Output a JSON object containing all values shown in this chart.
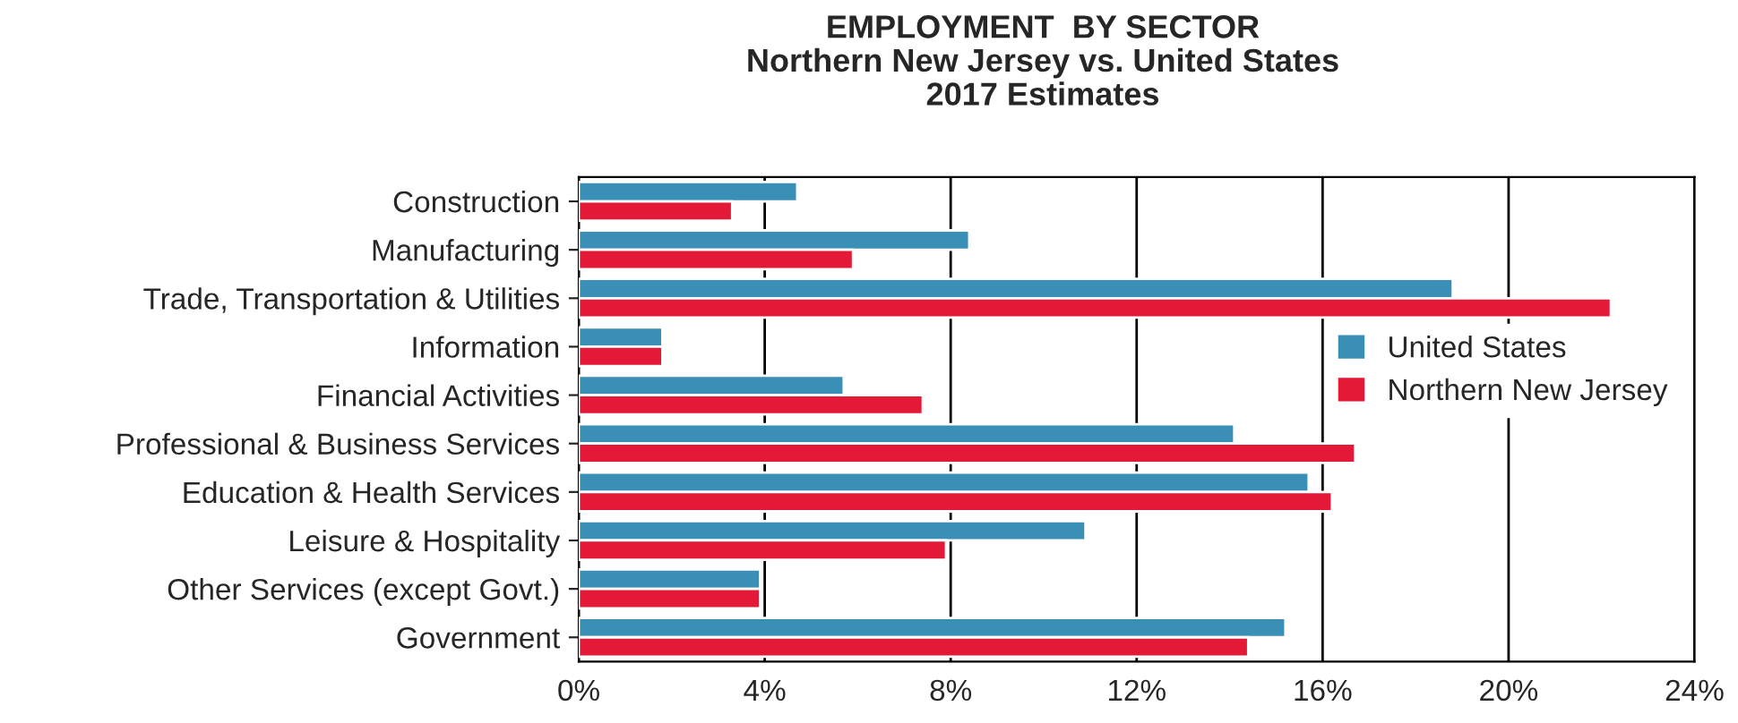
{
  "chart_data": {
    "type": "bar",
    "orientation": "horizontal",
    "title": "EMPLOYMENT  BY SECTOR\nNorthern New Jersey vs. United States\n2017 Estimates",
    "categories": [
      "Construction",
      "Manufacturing",
      "Trade, Transportation & Utilities",
      "Information",
      "Financial Activities",
      "Professional & Business Services",
      "Education & Health Services",
      "Leisure & Hospitality",
      "Other Services (except Govt.)",
      "Government"
    ],
    "series": [
      {
        "name": "United States",
        "color": "#3a8fb7",
        "values": [
          4.7,
          8.4,
          18.8,
          1.8,
          5.7,
          14.1,
          15.7,
          10.9,
          3.9,
          15.2
        ]
      },
      {
        "name": "Northern New Jersey",
        "color": "#e31937",
        "values": [
          3.3,
          5.9,
          22.2,
          1.8,
          7.4,
          16.7,
          16.2,
          7.9,
          3.9,
          14.4
        ]
      }
    ],
    "xlim": [
      0,
      24
    ],
    "xticks": [
      {
        "value": 0,
        "label": "0%"
      },
      {
        "value": 4,
        "label": "4%"
      },
      {
        "value": 8,
        "label": "8%"
      },
      {
        "value": 12,
        "label": "12%"
      },
      {
        "value": 16,
        "label": "16%"
      },
      {
        "value": 20,
        "label": "20%"
      },
      {
        "value": 24,
        "label": "24%"
      }
    ],
    "grid": "x",
    "legend": "right"
  }
}
